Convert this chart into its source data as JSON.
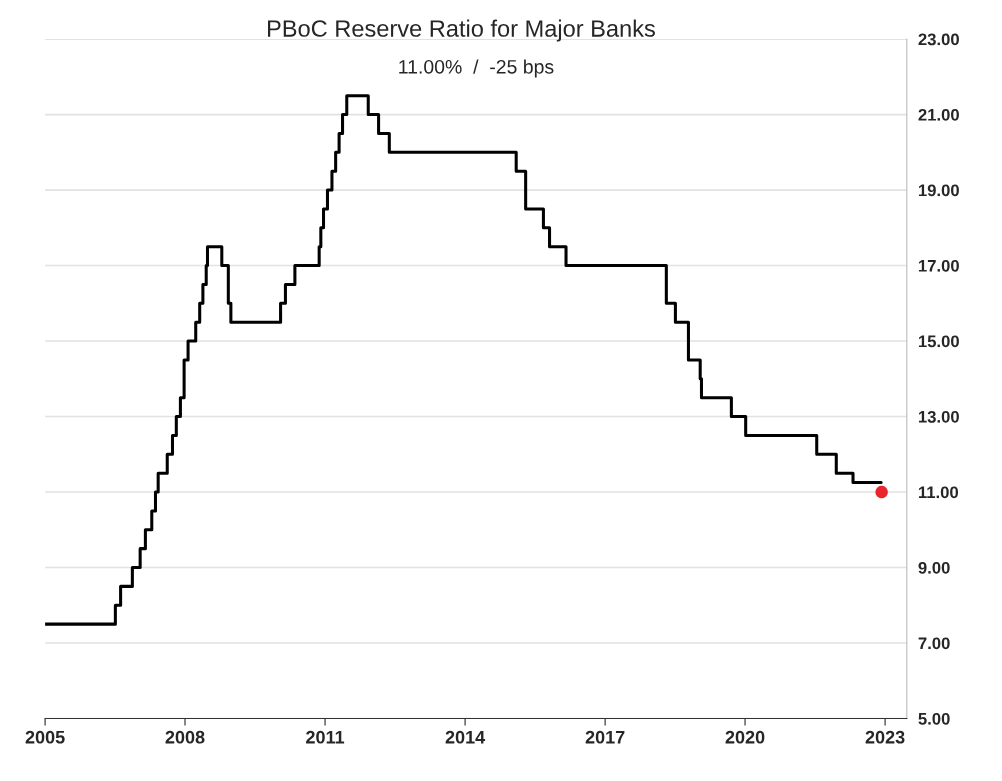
{
  "chart_data": {
    "type": "step",
    "title": "PBoC Reserve Ratio for Major Banks",
    "subtitle": "11.00%  /  -25 bps",
    "series": [
      {
        "color": "#000000",
        "x": [
          "2005-01-01",
          "2006-07-05",
          "2006-08-15",
          "2006-11-15",
          "2007-01-15",
          "2007-02-25",
          "2007-04-16",
          "2007-05-15",
          "2007-06-05",
          "2007-08-15",
          "2007-09-25",
          "2007-10-25",
          "2007-11-26",
          "2007-12-25",
          "2008-01-25",
          "2008-03-25",
          "2008-04-25",
          "2008-05-20",
          "2008-06-15",
          "2008-06-25",
          "2008-10-15",
          "2008-12-05",
          "2008-12-25",
          "2010-01-18",
          "2010-02-25",
          "2010-05-10",
          "2010-11-16",
          "2010-11-29",
          "2010-12-20",
          "2011-01-20",
          "2011-02-24",
          "2011-03-25",
          "2011-04-21",
          "2011-05-18",
          "2011-06-20",
          "2011-12-05",
          "2012-02-24",
          "2012-05-18",
          "2015-02-05",
          "2015-04-20",
          "2015-09-06",
          "2015-10-24",
          "2016-03-01",
          "2018-04-25",
          "2018-07-05",
          "2018-10-15",
          "2019-01-15",
          "2019-01-25",
          "2019-09-16",
          "2020-01-06",
          "2021-07-15",
          "2021-12-15",
          "2022-04-25",
          "2022-12-01"
        ],
        "values": [
          7.5,
          8.0,
          8.5,
          9.0,
          9.5,
          10.0,
          10.5,
          11.0,
          11.5,
          12.0,
          12.5,
          13.0,
          13.5,
          14.5,
          15.0,
          15.5,
          16.0,
          16.5,
          17.0,
          17.5,
          17.0,
          16.0,
          15.5,
          16.0,
          16.5,
          17.0,
          17.5,
          18.0,
          18.5,
          19.0,
          19.5,
          20.0,
          20.5,
          21.0,
          21.5,
          21.0,
          20.5,
          20.0,
          19.5,
          18.5,
          18.0,
          17.5,
          17.0,
          16.0,
          15.5,
          14.5,
          14.0,
          13.5,
          13.0,
          12.5,
          12.0,
          11.5,
          11.25,
          11.25
        ]
      },
      {
        "type": "scatter",
        "color": "#e8262b",
        "marker": "circle",
        "x": [
          "2022-12-05"
        ],
        "values": [
          11.0
        ]
      }
    ],
    "xlim": [
      "2005-01-01",
      "2023-06-20"
    ],
    "xticks": [
      "2005",
      "2008",
      "2011",
      "2014",
      "2017",
      "2020",
      "2023"
    ],
    "ylim": [
      5,
      23
    ],
    "yticks": [
      {
        "value": 5,
        "label": "5.00"
      },
      {
        "value": 7,
        "label": "7.00"
      },
      {
        "value": 9,
        "label": "9.00"
      },
      {
        "value": 11,
        "label": "11.00"
      },
      {
        "value": 13,
        "label": "13.00"
      },
      {
        "value": 15,
        "label": "15.00"
      },
      {
        "value": 17,
        "label": "17.00"
      },
      {
        "value": 19,
        "label": "19.00"
      },
      {
        "value": 21,
        "label": "21.00"
      },
      {
        "value": 23,
        "label": "23.00"
      }
    ],
    "grid": "y",
    "legend": false
  }
}
